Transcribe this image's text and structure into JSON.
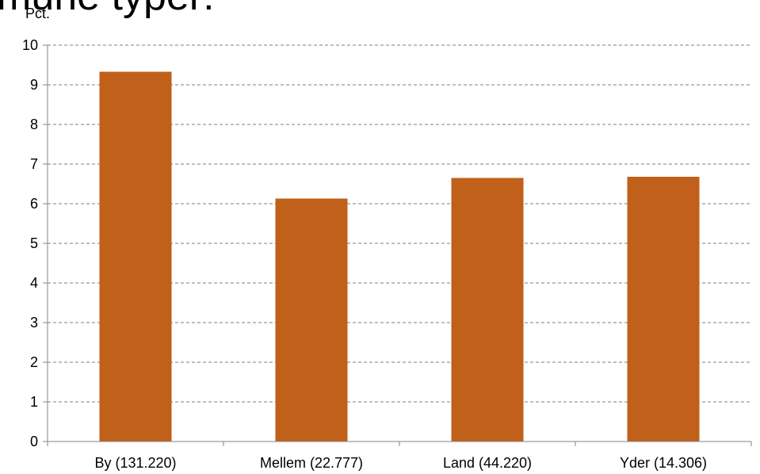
{
  "header": {
    "title_fragment": "mune typer:"
  },
  "chart_data": {
    "type": "bar",
    "title": "",
    "ylabel": "Pct.",
    "xlabel": "",
    "ylim": [
      0,
      10
    ],
    "yticks": [
      0,
      1,
      2,
      3,
      4,
      5,
      6,
      7,
      8,
      9,
      10
    ],
    "grid": true,
    "categories": [
      "By (131.220)",
      "Mellem (22.777)",
      "Land (44.220)",
      "Yder (14.306)"
    ],
    "values": [
      9.33,
      6.13,
      6.65,
      6.68
    ],
    "bar_color": "#c0601b"
  }
}
